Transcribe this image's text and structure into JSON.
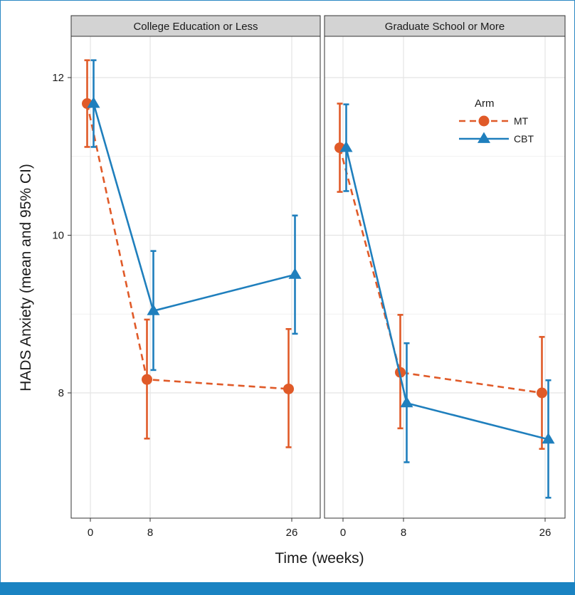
{
  "colors": {
    "mt": "#e05a28",
    "cbt": "#1f7fbd",
    "strip_fill": "#d3d3d3",
    "grid": "#e4e4e4",
    "frame": "#2b88c4",
    "bottom_bar": "#1a83c2"
  },
  "chart_data": {
    "type": "line",
    "ylabel": "HADS Anxiety (mean and 95% CI)",
    "xlabel": "Time (weeks)",
    "ylim": [
      6.6,
      12.5
    ],
    "yticks": [
      8,
      10,
      12
    ],
    "x": [
      0,
      8,
      26
    ],
    "xtick_labels": [
      "0",
      "8",
      "26"
    ],
    "legend": {
      "title": "Arm",
      "position": "top-right",
      "entries": [
        "MT",
        "CBT"
      ]
    },
    "panels": [
      {
        "strip": "College Education or Less",
        "series": [
          {
            "name": "MT",
            "values": [
              11.67,
              8.17,
              8.05
            ],
            "lower": [
              11.12,
              7.42,
              7.31
            ],
            "upper": [
              12.22,
              8.93,
              8.81
            ]
          },
          {
            "name": "CBT",
            "values": [
              11.67,
              9.04,
              9.5
            ],
            "lower": [
              11.12,
              8.29,
              8.75
            ],
            "upper": [
              12.22,
              9.8,
              10.25
            ]
          }
        ]
      },
      {
        "strip": "Graduate School or More",
        "series": [
          {
            "name": "MT",
            "values": [
              11.11,
              8.26,
              8.0
            ],
            "lower": [
              10.55,
              7.55,
              7.29
            ],
            "upper": [
              11.67,
              8.99,
              8.71
            ]
          },
          {
            "name": "CBT",
            "values": [
              11.11,
              7.87,
              7.41
            ],
            "lower": [
              10.56,
              7.12,
              6.67
            ],
            "upper": [
              11.66,
              8.63,
              8.16
            ]
          }
        ]
      }
    ]
  }
}
